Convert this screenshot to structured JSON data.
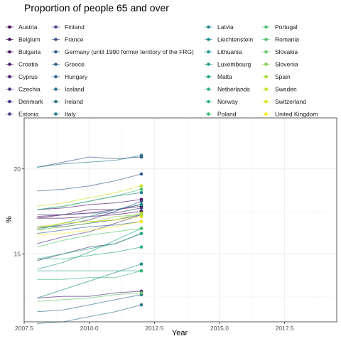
{
  "chart_data": {
    "type": "line",
    "title": "Proportion of people 65 and over",
    "xlabel": "Year",
    "ylabel": "%",
    "xlim": [
      2007.5,
      2019.5
    ],
    "ylim": [
      11.0,
      23.0
    ],
    "x_ticks": [
      2007.5,
      2010.0,
      2012.5,
      2015.0,
      2017.5
    ],
    "x_tick_labels": [
      "2007.5",
      "2010.0",
      "2012.5",
      "2015.0",
      "2017.5"
    ],
    "y_ticks": [
      15,
      20
    ],
    "y_tick_labels": [
      "15",
      "20"
    ],
    "grid": true,
    "legend_position": "top",
    "x": [
      2008,
      2009,
      2010,
      2011,
      2012
    ],
    "series": [
      {
        "name": "Austria",
        "color": "#440154",
        "values": [
          17.1,
          17.3,
          17.6,
          17.6,
          17.8
        ]
      },
      {
        "name": "Belgium",
        "color": "#460B5E",
        "values": [
          17.1,
          17.1,
          17.2,
          17.3,
          17.5
        ]
      },
      {
        "name": "Bulgaria",
        "color": "#471365",
        "values": [
          17.6,
          17.7,
          17.9,
          18.0,
          18.2
        ]
      },
      {
        "name": "Croatia",
        "color": "#481D6F",
        "values": [
          17.2,
          17.3,
          17.4,
          17.6,
          17.9
        ]
      },
      {
        "name": "Cyprus",
        "color": "#482576",
        "values": [
          12.4,
          12.5,
          12.5,
          12.7,
          12.8
        ]
      },
      {
        "name": "Czechia",
        "color": "#472E7C",
        "values": [
          14.6,
          15.0,
          15.4,
          15.6,
          16.2
        ]
      },
      {
        "name": "Denmark",
        "color": "#453581",
        "values": [
          15.6,
          16.0,
          16.3,
          16.8,
          17.3
        ]
      },
      {
        "name": "Estonia",
        "color": "#433E85",
        "values": [
          17.3,
          17.3,
          17.4,
          17.4,
          17.7
        ]
      },
      {
        "name": "Finland",
        "color": "#404588",
        "values": [
          16.5,
          16.7,
          17.0,
          17.5,
          18.1
        ]
      },
      {
        "name": "France",
        "color": "#3C4D8A",
        "values": [
          16.6,
          16.6,
          16.8,
          17.0,
          17.3
        ]
      },
      {
        "name": "Germany (until 1990 former territory of the FRG)",
        "color": "#38558C",
        "values": [
          20.1,
          20.4,
          20.7,
          20.6,
          20.7
        ]
      },
      {
        "name": "Greece",
        "color": "#355E8D",
        "values": [
          18.7,
          18.8,
          19.0,
          19.3,
          19.7
        ]
      },
      {
        "name": "Hungary",
        "color": "#31658E",
        "values": [
          16.2,
          16.4,
          16.6,
          16.7,
          16.9
        ]
      },
      {
        "name": "Iceland",
        "color": "#2E6D8E",
        "values": [
          11.6,
          11.7,
          12.0,
          12.3,
          12.6
        ]
      },
      {
        "name": "Ireland",
        "color": "#2B748E",
        "values": [
          10.9,
          11.0,
          11.3,
          11.6,
          12.0
        ]
      },
      {
        "name": "Italy",
        "color": "#287C8E",
        "values": [
          20.1,
          20.3,
          20.4,
          20.5,
          20.8
        ]
      },
      {
        "name": "Latvia",
        "color": "#25838E",
        "values": [
          17.6,
          17.8,
          18.1,
          18.4,
          18.6
        ]
      },
      {
        "name": "Liechtenstein",
        "color": "#228C8D",
        "values": [
          12.4,
          12.9,
          13.4,
          13.9,
          14.4
        ]
      },
      {
        "name": "Lithuania",
        "color": "#1F938C",
        "values": [
          16.4,
          16.8,
          17.2,
          17.6,
          17.9
        ]
      },
      {
        "name": "Luxembourg",
        "color": "#1F9A8A",
        "values": [
          14.0,
          14.0,
          14.0,
          14.0,
          14.0
        ]
      },
      {
        "name": "Malta",
        "color": "#21A386",
        "values": [
          14.1,
          14.5,
          15.1,
          15.8,
          16.5
        ]
      },
      {
        "name": "Netherlands",
        "color": "#26AD81",
        "values": [
          14.7,
          15.0,
          15.3,
          15.6,
          16.2
        ]
      },
      {
        "name": "Norway",
        "color": "#2CB17E",
        "values": [
          14.7,
          14.7,
          14.9,
          15.1,
          15.4
        ]
      },
      {
        "name": "Poland",
        "color": "#37B878",
        "values": [
          13.5,
          13.5,
          13.6,
          13.6,
          14.0
        ]
      },
      {
        "name": "Portugal",
        "color": "#43BF71",
        "values": [
          17.6,
          17.8,
          18.1,
          18.4,
          18.8
        ]
      },
      {
        "name": "Romania",
        "color": "#50C46A",
        "values": [
          15.4,
          15.8,
          16.1,
          16.3,
          16.5
        ]
      },
      {
        "name": "Slovakia",
        "color": "#5FCA61",
        "values": [
          12.2,
          12.3,
          12.4,
          12.6,
          12.7
        ]
      },
      {
        "name": "Slovenia",
        "color": "#7FD34E",
        "values": [
          16.4,
          16.6,
          16.8,
          17.2,
          17.3
        ]
      },
      {
        "name": "Spain",
        "color": "#A8DB34",
        "values": [
          16.5,
          16.8,
          16.9,
          17.0,
          17.4
        ]
      },
      {
        "name": "Sweden",
        "color": "#CAE11F",
        "values": [
          17.8,
          18.0,
          18.3,
          18.6,
          19.0
        ]
      },
      {
        "name": "Switzerland",
        "color": "#DFE318",
        "values": [
          16.6,
          16.8,
          16.9,
          17.0,
          17.2
        ]
      },
      {
        "name": "United Kingdom",
        "color": "#FDE725",
        "values": [
          16.1,
          16.2,
          16.4,
          16.6,
          16.9
        ]
      }
    ]
  }
}
